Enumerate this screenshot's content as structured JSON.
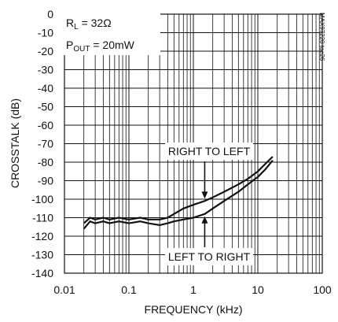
{
  "chart_data": {
    "type": "line",
    "xscale": "log",
    "xlim": [
      0.01,
      100
    ],
    "ylim": [
      -140,
      0
    ],
    "grid": true,
    "xlabel": "FREQUENCY (kHz)",
    "ylabel": "CROSSTALK (dB)",
    "x_tick_labels": [
      "0.01",
      "0.1",
      "1",
      "10",
      "100"
    ],
    "y_tick_labels": [
      "0",
      "-10",
      "-20",
      "-30",
      "-40",
      "-50",
      "-60",
      "-70",
      "-80",
      "-90",
      "-100",
      "-110",
      "-120",
      "-130",
      "-140"
    ],
    "conditions": {
      "rl_main": "R",
      "rl_sub": "L",
      "rl_value": " = 32Ω",
      "pout_main": "P",
      "pout_sub": "OUT",
      "pout_value": " = 20mW"
    },
    "part_code": "MAX97220 toc26",
    "series": [
      {
        "name": "RIGHT TO LEFT",
        "points": [
          [
            0.02,
            -113
          ],
          [
            0.025,
            -110
          ],
          [
            0.03,
            -111
          ],
          [
            0.04,
            -110
          ],
          [
            0.05,
            -111
          ],
          [
            0.07,
            -110
          ],
          [
            0.1,
            -111
          ],
          [
            0.15,
            -110
          ],
          [
            0.2,
            -111
          ],
          [
            0.3,
            -111
          ],
          [
            0.4,
            -110
          ],
          [
            0.5,
            -108
          ],
          [
            0.7,
            -105
          ],
          [
            1,
            -103
          ],
          [
            1.5,
            -101
          ],
          [
            2,
            -99
          ],
          [
            3,
            -96
          ],
          [
            5,
            -92
          ],
          [
            7,
            -89
          ],
          [
            10,
            -85
          ],
          [
            13,
            -81
          ],
          [
            17,
            -77
          ]
        ]
      },
      {
        "name": "LEFT TO RIGHT",
        "points": [
          [
            0.02,
            -116
          ],
          [
            0.025,
            -112
          ],
          [
            0.03,
            -113
          ],
          [
            0.04,
            -112
          ],
          [
            0.05,
            -113
          ],
          [
            0.07,
            -112
          ],
          [
            0.1,
            -113
          ],
          [
            0.15,
            -112
          ],
          [
            0.2,
            -113
          ],
          [
            0.3,
            -114
          ],
          [
            0.4,
            -113
          ],
          [
            0.5,
            -112
          ],
          [
            0.7,
            -111
          ],
          [
            1,
            -110
          ],
          [
            1.5,
            -108
          ],
          [
            2,
            -105
          ],
          [
            3,
            -101
          ],
          [
            5,
            -96
          ],
          [
            7,
            -92
          ],
          [
            10,
            -88
          ],
          [
            13,
            -84
          ],
          [
            17,
            -79
          ]
        ]
      }
    ],
    "annotations": [
      {
        "text": "RIGHT TO LEFT",
        "target_series": 0,
        "target_x": 1.5
      },
      {
        "text": "LEFT TO RIGHT",
        "target_series": 1,
        "target_x": 1.5
      }
    ]
  }
}
